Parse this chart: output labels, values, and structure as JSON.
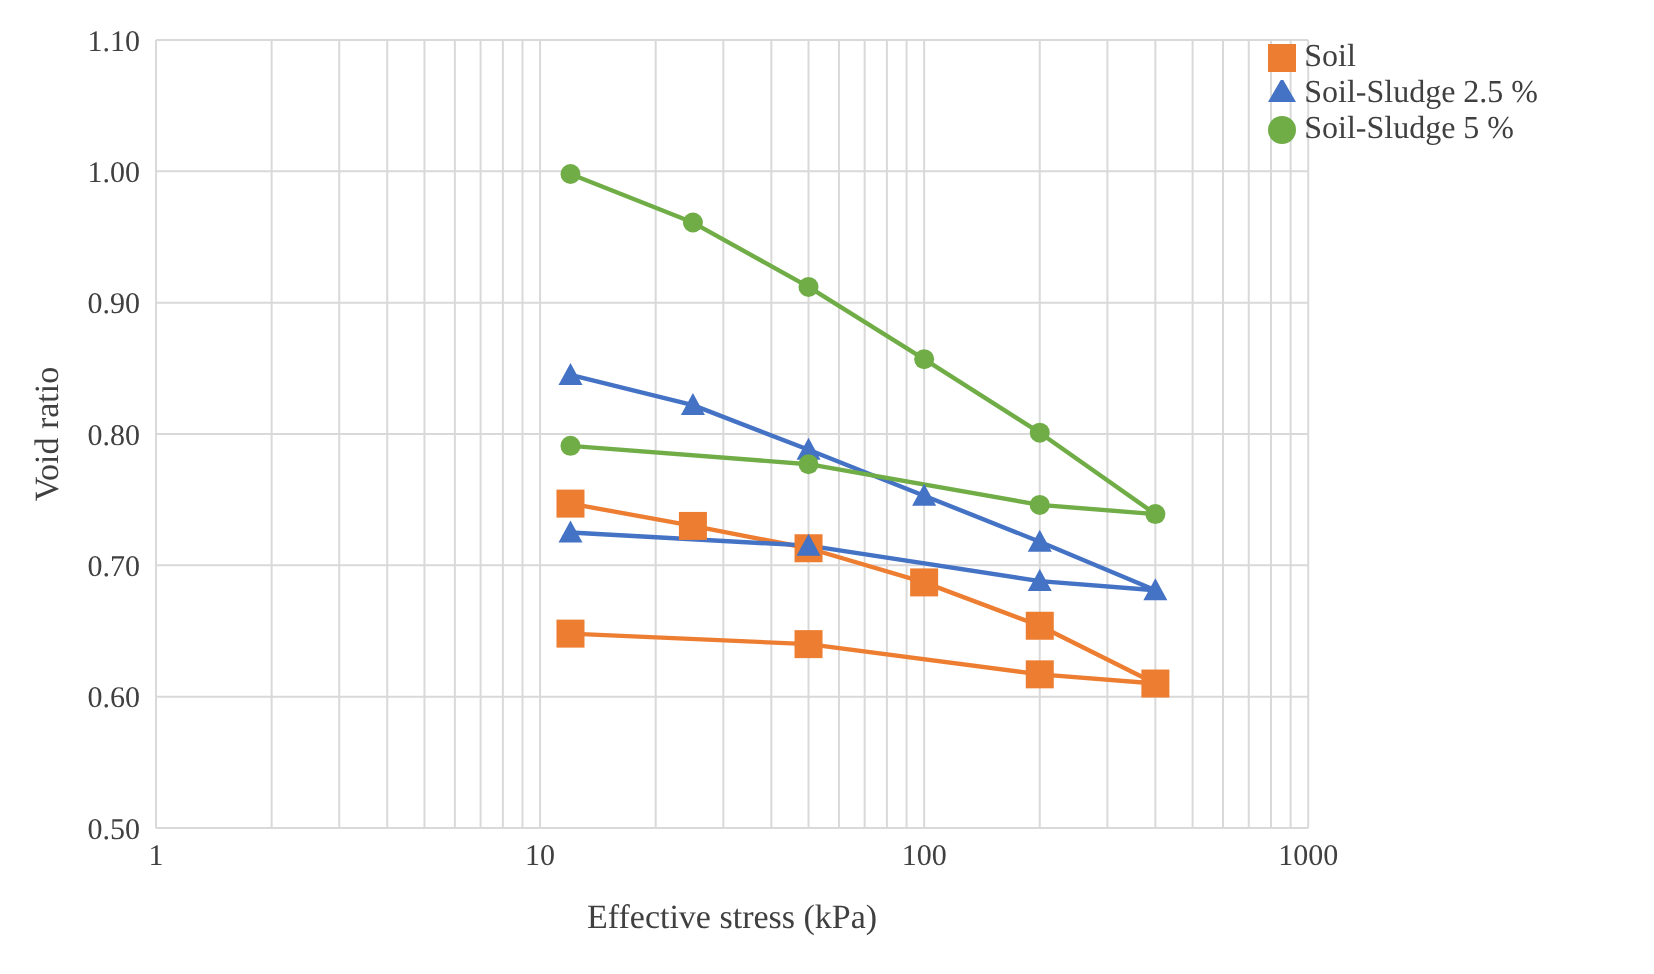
{
  "chart_data": {
    "type": "line",
    "xlabel": "Effective stress  (kPa)",
    "ylabel": "Void ratio",
    "log": "x",
    "grid": true,
    "legend": "top right",
    "xlim": [
      1,
      1000
    ],
    "xticks": [
      1,
      {
        "value": 2,
        "label": null
      },
      {
        "value": 3,
        "label": null
      },
      {
        "value": 4,
        "label": null
      },
      {
        "value": 5,
        "label": null
      },
      {
        "value": 6,
        "label": null
      },
      {
        "value": 7,
        "label": null
      },
      {
        "value": 8,
        "label": null
      },
      {
        "value": 9,
        "label": null
      },
      10,
      {
        "value": 20,
        "label": null
      },
      {
        "value": 30,
        "label": null
      },
      {
        "value": 40,
        "label": null
      },
      {
        "value": 50,
        "label": null
      },
      {
        "value": 60,
        "label": null
      },
      {
        "value": 70,
        "label": null
      },
      {
        "value": 80,
        "label": null
      },
      {
        "value": 90,
        "label": null
      },
      100,
      {
        "value": 200,
        "label": null
      },
      {
        "value": 300,
        "label": null
      },
      {
        "value": 400,
        "label": null
      },
      {
        "value": 500,
        "label": null
      },
      {
        "value": 600,
        "label": null
      },
      {
        "value": 700,
        "label": null
      },
      {
        "value": 800,
        "label": null
      },
      {
        "value": 900,
        "label": null
      },
      1000
    ],
    "ylim": [
      0.5,
      1.1
    ],
    "yticks": [
      {
        "value": 0.5,
        "label": "0.50"
      },
      {
        "value": 0.6,
        "label": "0.60"
      },
      {
        "value": 0.7,
        "label": "0.70"
      },
      {
        "value": 0.8,
        "label": "0.80"
      },
      {
        "value": 0.9,
        "label": "0.90"
      },
      {
        "value": 1.0,
        "label": "1.00"
      },
      {
        "value": 1.1,
        "label": "1.10"
      }
    ],
    "line_style": "solid",
    "series": [
      {
        "name": "Soil",
        "color": "#ed7d31",
        "marker": "square",
        "x": [
          12,
          25,
          50,
          100,
          200,
          400,
          200,
          50,
          12
        ],
        "values": [
          0.747,
          0.73,
          0.713,
          0.687,
          0.654,
          0.61,
          0.617,
          0.64,
          0.648
        ]
      },
      {
        "name": "Soil-Sludge 2.5 %",
        "color": "#4472c4",
        "marker": "triangle",
        "x": [
          12,
          25,
          50,
          100,
          200,
          400,
          200,
          50,
          12
        ],
        "values": [
          0.845,
          0.822,
          0.788,
          0.753,
          0.718,
          0.681,
          0.688,
          0.715,
          0.725
        ]
      },
      {
        "name": "Soil-Sludge 5 %",
        "color": "#70ad47",
        "marker": "circle",
        "x": [
          12,
          25,
          50,
          100,
          200,
          400,
          200,
          50,
          12
        ],
        "values": [
          0.998,
          0.961,
          0.912,
          0.857,
          0.801,
          0.739,
          0.746,
          0.777,
          0.791
        ]
      }
    ]
  }
}
